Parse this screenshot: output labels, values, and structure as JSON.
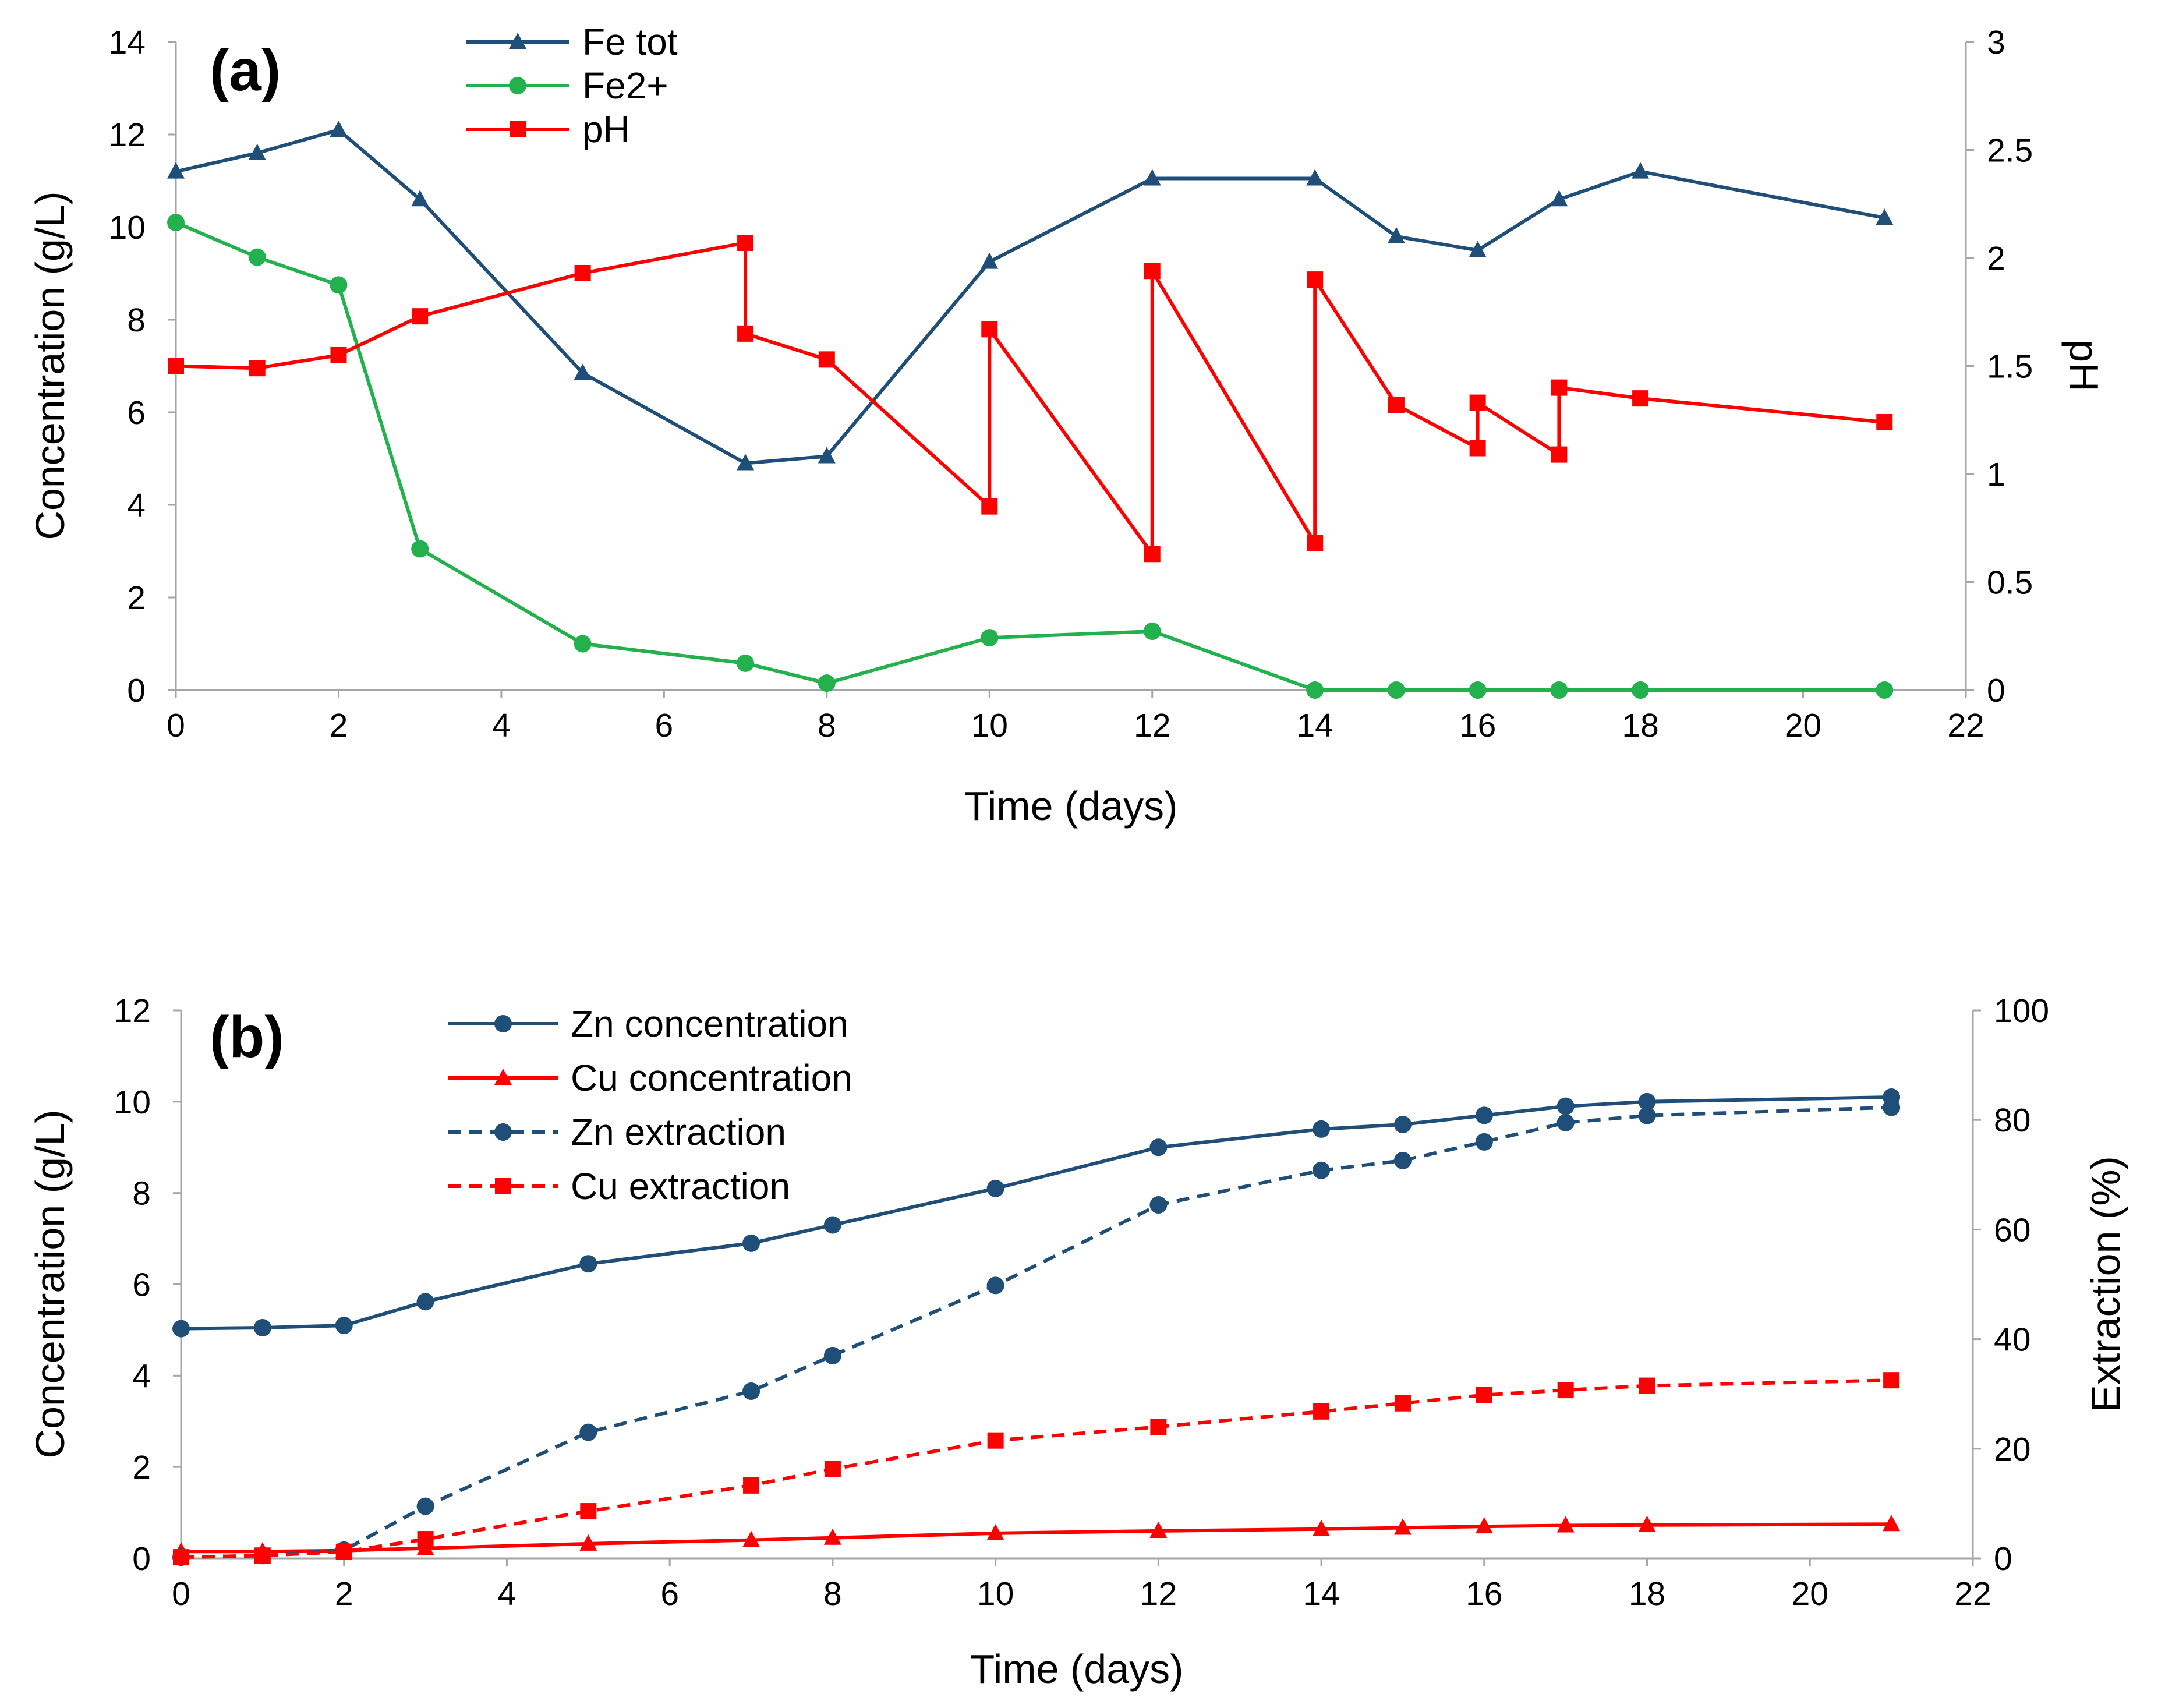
{
  "chart_data": [
    {
      "panel": "(a)",
      "type": "line",
      "xlabel": "Time (days)",
      "ylabel": "Concentration (g/L)",
      "y2label": "pH",
      "xlim": [
        0,
        22
      ],
      "xticks": [
        0,
        2,
        4,
        6,
        8,
        10,
        12,
        14,
        16,
        18,
        20,
        22
      ],
      "ylim": [
        0,
        14
      ],
      "yticks": [
        0,
        2,
        4,
        6,
        8,
        10,
        12,
        14
      ],
      "y2lim": [
        0,
        3
      ],
      "y2ticks": [
        0,
        0.5,
        1,
        1.5,
        2,
        2.5,
        3
      ],
      "legend_position": "top-center",
      "series": [
        {
          "name": "Fe tot",
          "axis": "left",
          "color": "#1f4e79",
          "marker": "triangle",
          "dash": "solid",
          "x": [
            0,
            1,
            2,
            3,
            5,
            7,
            8,
            10,
            12,
            14,
            15,
            16,
            17,
            18,
            21
          ],
          "y": [
            11.2,
            11.6,
            12.1,
            10.6,
            6.85,
            4.9,
            5.05,
            9.25,
            11.05,
            11.05,
            9.8,
            9.5,
            10.6,
            11.2,
            10.2
          ]
        },
        {
          "name": "Fe2+",
          "axis": "left",
          "color": "#22b14c",
          "marker": "circle",
          "dash": "solid",
          "x": [
            0,
            1,
            2,
            3,
            5,
            7,
            8,
            10,
            12,
            14,
            15,
            16,
            17,
            18,
            21
          ],
          "y": [
            10.1,
            9.35,
            8.75,
            3.05,
            1.0,
            0.58,
            0.15,
            1.13,
            1.27,
            0.0,
            0.0,
            0.0,
            0.0,
            0.0,
            0.0
          ]
        },
        {
          "name": "pH",
          "axis": "right",
          "color": "#ff0000",
          "marker": "square",
          "dash": "solid",
          "x": [
            0,
            1,
            2,
            3,
            5,
            7,
            7,
            8,
            10,
            10,
            12,
            12,
            14,
            14,
            15,
            16,
            16,
            17,
            17,
            18,
            21
          ],
          "y": [
            1.5,
            1.49,
            1.55,
            1.73,
            1.93,
            2.07,
            1.65,
            1.53,
            0.85,
            1.67,
            0.63,
            1.94,
            0.68,
            1.9,
            1.32,
            1.12,
            1.33,
            1.09,
            1.4,
            1.35,
            1.24
          ]
        }
      ]
    },
    {
      "panel": "(b)",
      "type": "line",
      "xlabel": "Time (days)",
      "ylabel": "Concentration (g/L)",
      "y2label": "Extraction (%)",
      "xlim": [
        0,
        22
      ],
      "xticks": [
        0,
        2,
        4,
        6,
        8,
        10,
        12,
        14,
        16,
        18,
        20,
        22
      ],
      "ylim": [
        0,
        12
      ],
      "yticks": [
        0,
        2,
        4,
        6,
        8,
        10,
        12
      ],
      "y2lim": [
        0,
        100
      ],
      "y2ticks": [
        0,
        20,
        40,
        60,
        80,
        100
      ],
      "legend_position": "top-left",
      "series": [
        {
          "name": "Zn concentration",
          "axis": "left",
          "color": "#1f4e79",
          "marker": "circle",
          "dash": "solid",
          "x": [
            0,
            1,
            2,
            3,
            5,
            7,
            8,
            10,
            12,
            14,
            15,
            16,
            17,
            18,
            21
          ],
          "y": [
            5.03,
            5.05,
            5.1,
            5.62,
            6.45,
            6.9,
            7.3,
            8.1,
            9.0,
            9.4,
            9.5,
            9.7,
            9.9,
            10.0,
            10.1
          ]
        },
        {
          "name": "Cu concentration",
          "axis": "left",
          "color": "#ff0000",
          "marker": "triangle",
          "dash": "solid",
          "x": [
            0,
            1,
            2,
            3,
            5,
            7,
            8,
            10,
            12,
            14,
            15,
            16,
            17,
            18,
            21
          ],
          "y": [
            0.15,
            0.15,
            0.17,
            0.22,
            0.32,
            0.4,
            0.45,
            0.55,
            0.6,
            0.64,
            0.67,
            0.7,
            0.72,
            0.73,
            0.75
          ]
        },
        {
          "name": "Zn extraction",
          "axis": "right",
          "color": "#1f4e79",
          "marker": "circle",
          "dash": "dashed",
          "x": [
            0,
            1,
            2,
            3,
            5,
            7,
            8,
            10,
            12,
            14,
            15,
            16,
            17,
            18,
            21
          ],
          "y": [
            0.2,
            0.5,
            1.5,
            9.5,
            23,
            30.5,
            37,
            49.8,
            64.5,
            70.8,
            72.6,
            76,
            79.5,
            80.8,
            82.3
          ]
        },
        {
          "name": "Cu extraction",
          "axis": "right",
          "color": "#ff0000",
          "marker": "square",
          "dash": "dashed",
          "x": [
            0,
            1,
            2,
            3,
            5,
            7,
            8,
            10,
            12,
            14,
            15,
            16,
            17,
            18,
            21
          ],
          "y": [
            0.2,
            0.5,
            1.2,
            3.5,
            8.6,
            13.3,
            16.3,
            21.5,
            24.0,
            26.8,
            28.3,
            29.8,
            30.7,
            31.5,
            32.5
          ]
        }
      ]
    }
  ]
}
